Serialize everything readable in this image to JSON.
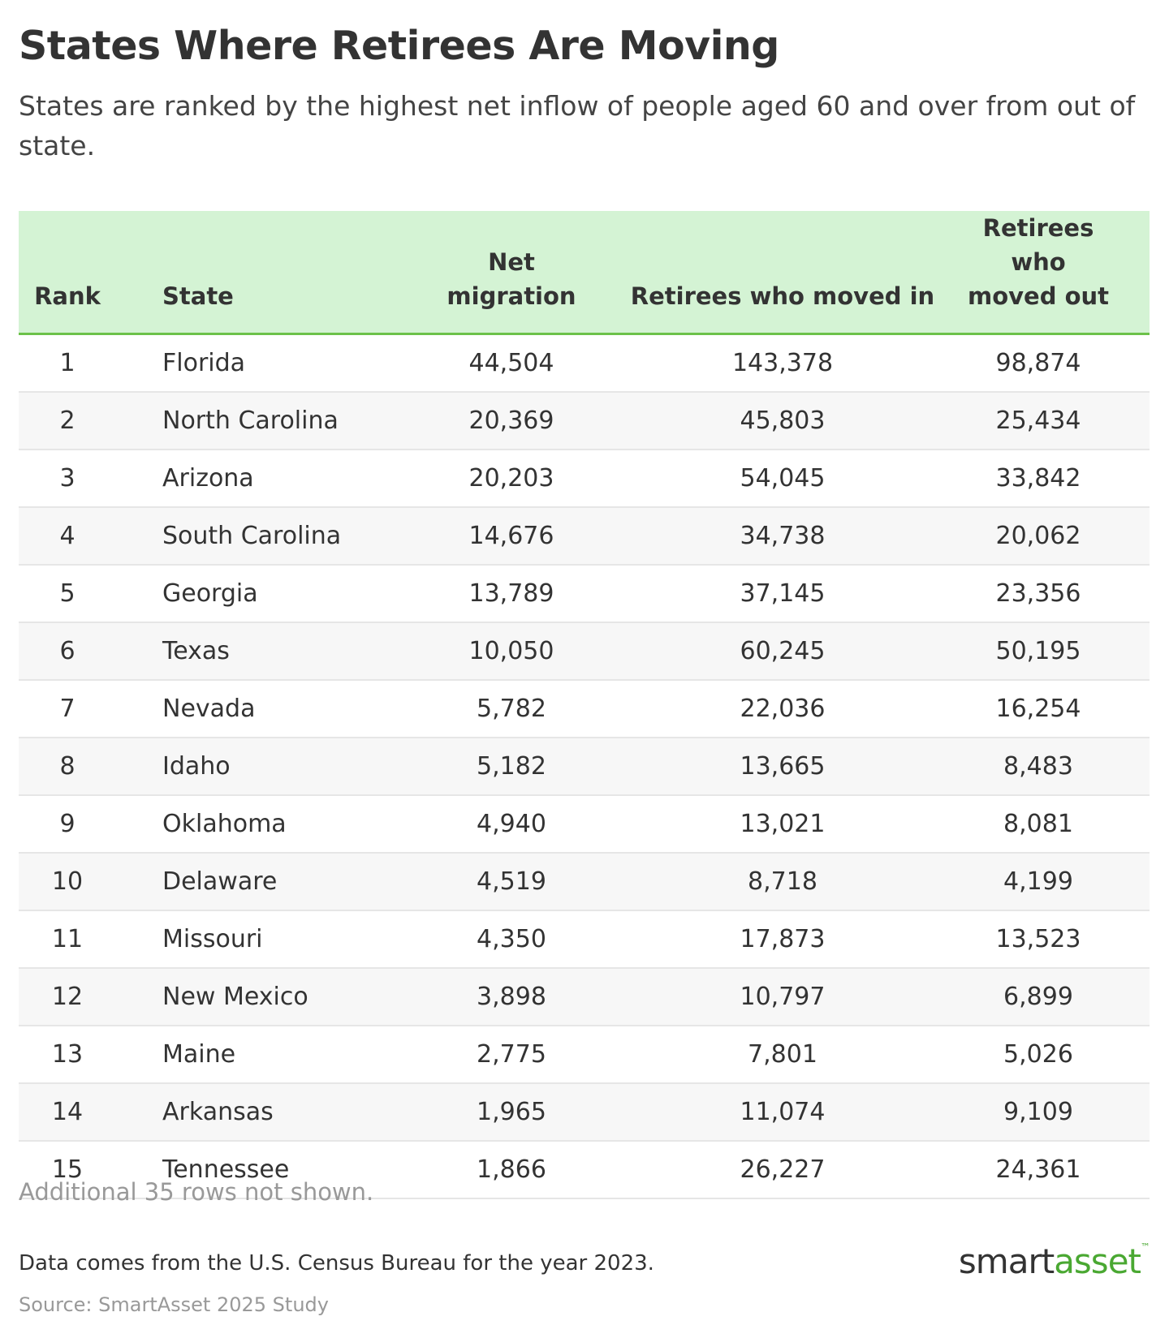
{
  "header": {
    "title": "States Where Retirees Are Moving",
    "subtitle": "States are ranked by the highest net inflow of people aged 60 and over from out of state."
  },
  "table": {
    "columns": [
      "Rank",
      "State",
      "Net migration",
      "Retirees who moved in",
      "Retirees who moved out"
    ],
    "rows": [
      [
        "1",
        "Florida",
        "44,504",
        "143,378",
        "98,874"
      ],
      [
        "2",
        "North Carolina",
        "20,369",
        "45,803",
        "25,434"
      ],
      [
        "3",
        "Arizona",
        "20,203",
        "54,045",
        "33,842"
      ],
      [
        "4",
        "South Carolina",
        "14,676",
        "34,738",
        "20,062"
      ],
      [
        "5",
        "Georgia",
        "13,789",
        "37,145",
        "23,356"
      ],
      [
        "6",
        "Texas",
        "10,050",
        "60,245",
        "50,195"
      ],
      [
        "7",
        "Nevada",
        "5,782",
        "22,036",
        "16,254"
      ],
      [
        "8",
        "Idaho",
        "5,182",
        "13,665",
        "8,483"
      ],
      [
        "9",
        "Oklahoma",
        "4,940",
        "13,021",
        "8,081"
      ],
      [
        "10",
        "Delaware",
        "4,519",
        "8,718",
        "4,199"
      ],
      [
        "11",
        "Missouri",
        "4,350",
        "17,873",
        "13,523"
      ],
      [
        "12",
        "New Mexico",
        "3,898",
        "10,797",
        "6,899"
      ],
      [
        "13",
        "Maine",
        "2,775",
        "7,801",
        "5,026"
      ],
      [
        "14",
        "Arkansas",
        "1,965",
        "11,074",
        "9,109"
      ],
      [
        "15",
        "Tennessee",
        "1,866",
        "26,227",
        "24,361"
      ]
    ]
  },
  "footer": {
    "note": "Additional 35 rows not shown.",
    "description": "Data comes from the U.S. Census Bureau for the year 2023.",
    "source": "Source: SmartAsset 2025 Study",
    "logo": {
      "dark": "smart",
      "green": "asset",
      "mark": "™"
    }
  }
}
